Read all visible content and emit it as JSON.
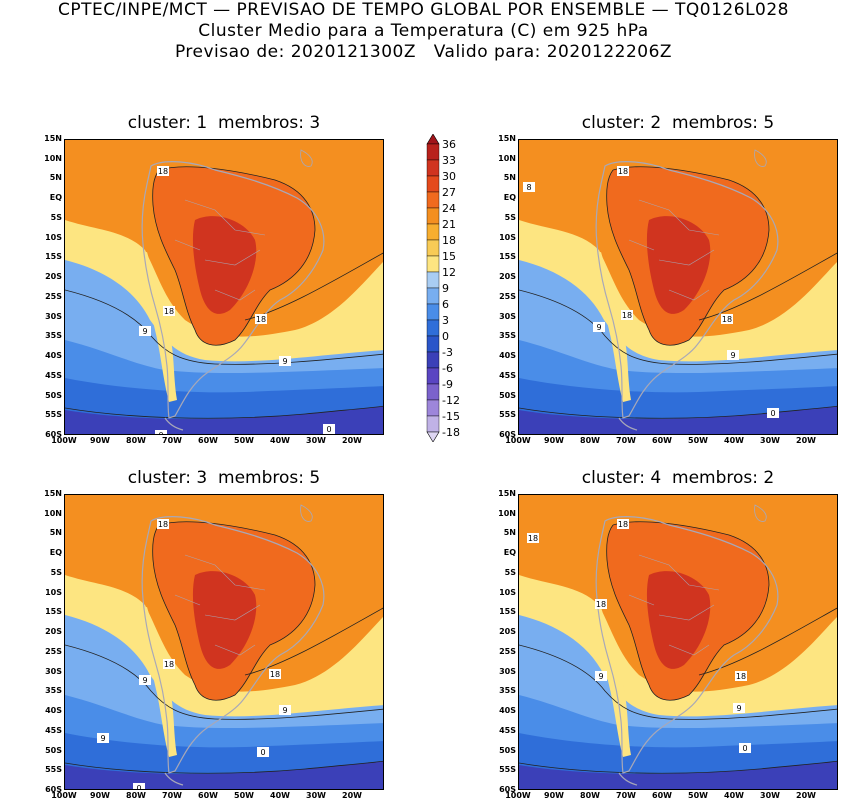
{
  "header": {
    "line1": "CPTEC/INPE/MCT — PREVISAO DE TEMPO GLOBAL POR ENSEMBLE — TQ0126L028",
    "line2": "Cluster Medio para a Temperatura (C) em 925 hPa",
    "line3": "Previsao de: 2020121300Z   Valido para: 2020122206Z"
  },
  "panels": [
    {
      "title": "cluster: 1  membros: 3",
      "contour_labels": [
        "18",
        "18",
        "18",
        "9",
        "9",
        "0",
        "0"
      ]
    },
    {
      "title": "cluster: 2  membros: 5",
      "contour_labels": [
        "18",
        "8",
        "18",
        "18",
        "9",
        "9",
        "0"
      ]
    },
    {
      "title": "cluster: 3  membros: 5",
      "contour_labels": [
        "18",
        "18",
        "18",
        "9",
        "9",
        "9",
        "0",
        "0"
      ]
    },
    {
      "title": "cluster: 4  membros: 2",
      "contour_labels": [
        "18",
        "18",
        "18",
        "18",
        "9",
        "9",
        "0"
      ]
    }
  ],
  "lat_ticks": [
    "15N",
    "10N",
    "5N",
    "EQ",
    "5S",
    "10S",
    "15S",
    "20S",
    "25S",
    "30S",
    "35S",
    "40S",
    "45S",
    "50S",
    "55S",
    "60S"
  ],
  "lon_ticks": [
    "100W",
    "90W",
    "80W",
    "70W",
    "60W",
    "50W",
    "40W",
    "30W",
    "20W"
  ],
  "colorbar": {
    "labels": [
      "36",
      "33",
      "30",
      "27",
      "24",
      "21",
      "18",
      "15",
      "12",
      "9",
      "6",
      "3",
      "0",
      "-3",
      "-6",
      "-9",
      "-12",
      "-15",
      "-18"
    ],
    "colors": [
      "#a1141a",
      "#b8211c",
      "#d0341f",
      "#e44a1c",
      "#f06a1e",
      "#f48f20",
      "#f7ae2f",
      "#f8cb56",
      "#fde581",
      "#a9cdf3",
      "#78aef0",
      "#4a8de8",
      "#2f6ed9",
      "#2a55c9",
      "#3b40b8",
      "#5a45c2",
      "#7b62cc",
      "#9d86da",
      "#c0b2e6",
      "#ddd5f2"
    ]
  },
  "colors": {
    "ocean_tropical": "#f48f20",
    "continent": "#f06a1e",
    "hot_core": "#d0341f",
    "cool": "#fde581",
    "cold": "#78aef0",
    "colder": "#2f6ed9",
    "coldest": "#3b40b8",
    "coast": "#a8a8b8"
  }
}
